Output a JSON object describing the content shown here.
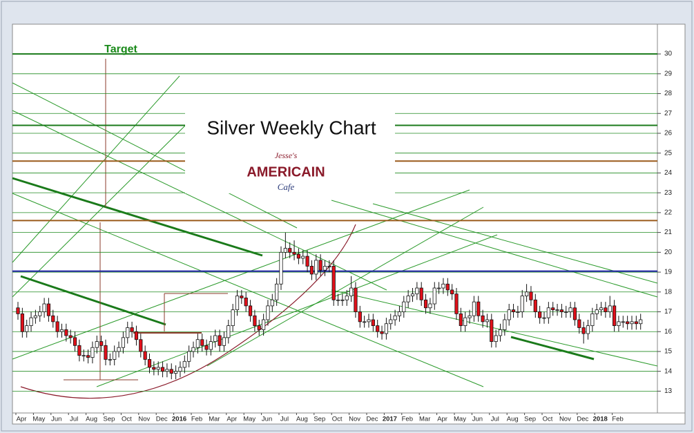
{
  "chart_data": {
    "type": "candlestick",
    "title": "Silver Weekly Chart",
    "annotation": "Target",
    "logo": {
      "top": "Jesse's",
      "middle": "AMERICAIN",
      "bottom": "Cafe"
    },
    "up_color": "#ffffff",
    "down_color": "#e0101a",
    "grid_color": "#1f8a1f",
    "ylim": [
      11.9,
      31.5
    ],
    "yticks": [
      13,
      14,
      15,
      16,
      17,
      18,
      19,
      20,
      21,
      22,
      23,
      24,
      25,
      26,
      27,
      28,
      29,
      30
    ],
    "grid": true,
    "levels": [
      {
        "value": 30,
        "color": "#1a7a1a"
      },
      {
        "value": 26.4,
        "color": "#1a7a1a"
      },
      {
        "value": 24.6,
        "color": "#9a5a1a"
      },
      {
        "value": 21.6,
        "color": "#9a5a1a"
      },
      {
        "value": 19.05,
        "color": "#2222aa"
      }
    ],
    "categories": [
      "Apr",
      null,
      null,
      null,
      "May",
      null,
      null,
      null,
      "Jun",
      null,
      null,
      null,
      "Jul",
      null,
      null,
      null,
      "Aug",
      null,
      null,
      null,
      "Sep",
      null,
      null,
      null,
      "Oct",
      null,
      null,
      null,
      "Nov",
      null,
      null,
      null,
      "Dec",
      null,
      null,
      null,
      "2016",
      null,
      null,
      null,
      "Feb",
      null,
      null,
      null,
      "Mar",
      null,
      null,
      null,
      "Apr",
      null,
      null,
      null,
      "May",
      null,
      null,
      null,
      "Jun",
      null,
      null,
      null,
      "Jul",
      null,
      null,
      null,
      "Aug",
      null,
      null,
      null,
      "Sep",
      null,
      null,
      null,
      "Oct",
      null,
      null,
      null,
      "Nov",
      null,
      null,
      null,
      "Dec",
      null,
      null,
      null,
      "2017",
      null,
      null,
      null,
      "Feb",
      null,
      null,
      null,
      "Mar",
      null,
      null,
      null,
      "Apr",
      null,
      null,
      null,
      "May",
      null,
      null,
      null,
      "Jun",
      null,
      null,
      null,
      "Jul",
      null,
      null,
      null,
      "Aug",
      null,
      null,
      null,
      "Sep",
      null,
      null,
      null,
      "Oct",
      null,
      null,
      null,
      "Nov",
      null,
      null,
      null,
      "Dec",
      null,
      null,
      null,
      "2018",
      null,
      null,
      null,
      "Feb",
      null,
      null,
      null,
      null,
      null,
      null
    ],
    "open": [
      17.2,
      16.9,
      16.0,
      16.3,
      16.7,
      16.8,
      17.0,
      17.4,
      16.8,
      16.5,
      16.0,
      16.1,
      15.8,
      15.7,
      15.3,
      14.8,
      14.8,
      14.7,
      15.2,
      15.5,
      15.3,
      14.6,
      14.6,
      15.0,
      15.2,
      15.7,
      16.2,
      16.0,
      15.6,
      15.0,
      14.6,
      14.2,
      14.1,
      14.2,
      14.0,
      14.1,
      13.9,
      14.0,
      14.2,
      14.5,
      15.0,
      15.2,
      15.6,
      15.3,
      15.1,
      15.5,
      15.8,
      15.3,
      15.7,
      16.3,
      17.1,
      17.8,
      17.7,
      17.3,
      16.8,
      16.3,
      16.1,
      16.6,
      17.3,
      17.6,
      18.4,
      20.0,
      20.2,
      20.0,
      19.9,
      19.7,
      19.8,
      19.3,
      18.9,
      19.6,
      19.1,
      19.3,
      19.3,
      17.6,
      17.6,
      17.6,
      17.8,
      18.2,
      17.0,
      16.5,
      16.5,
      16.6,
      16.3,
      16.0,
      15.9,
      16.4,
      16.6,
      16.8,
      17.0,
      17.5,
      17.8,
      17.9,
      18.2,
      17.6,
      17.2,
      17.4,
      18.2,
      18.2,
      18.4,
      18.1,
      17.9,
      16.9,
      16.3,
      16.7,
      16.8,
      17.5,
      16.8,
      16.5,
      16.6,
      15.5,
      15.8,
      16.1,
      16.6,
      17.1,
      17.0,
      17.0,
      17.8,
      18.0,
      17.6,
      17.0,
      16.7,
      16.7,
      17.2,
      17.1,
      17.1,
      17.0,
      17.0,
      17.2,
      16.6,
      16.2,
      15.9,
      16.3,
      16.9,
      17.1,
      17.2,
      17.0,
      17.3,
      16.3,
      16.5,
      16.5,
      16.4,
      16.5,
      16.4
    ],
    "high": [
      17.5,
      17.2,
      16.6,
      17.0,
      17.1,
      17.3,
      17.7,
      17.7,
      17.1,
      16.8,
      16.4,
      16.4,
      16.1,
      16.0,
      15.6,
      15.1,
      15.1,
      15.5,
      15.8,
      15.8,
      15.6,
      14.9,
      15.3,
      15.5,
      16.0,
      16.5,
      16.5,
      16.3,
      15.9,
      15.3,
      14.9,
      14.5,
      14.5,
      14.5,
      14.4,
      14.4,
      14.3,
      14.5,
      14.8,
      15.3,
      15.5,
      15.9,
      15.9,
      15.6,
      15.8,
      16.1,
      16.1,
      16.0,
      16.6,
      17.4,
      18.1,
      18.1,
      18.0,
      17.6,
      17.1,
      16.6,
      16.9,
      17.6,
      17.9,
      18.7,
      20.3,
      21.0,
      20.5,
      20.6,
      20.2,
      20.1,
      20.1,
      19.6,
      19.9,
      19.9,
      19.6,
      19.6,
      19.6,
      17.9,
      17.9,
      18.1,
      18.8,
      18.5,
      17.3,
      16.8,
      16.9,
      16.9,
      16.6,
      16.3,
      16.7,
      16.9,
      17.1,
      17.3,
      17.8,
      18.1,
      18.2,
      18.5,
      18.5,
      17.9,
      17.7,
      18.5,
      18.5,
      18.7,
      18.7,
      18.4,
      18.2,
      17.2,
      17.0,
      17.1,
      17.8,
      17.8,
      17.1,
      16.9,
      16.9,
      16.1,
      16.4,
      16.9,
      17.4,
      17.4,
      17.3,
      18.1,
      18.4,
      18.3,
      17.9,
      17.3,
      17.0,
      17.5,
      17.5,
      17.4,
      17.4,
      17.3,
      17.5,
      17.5,
      16.9,
      16.5,
      16.6,
      17.2,
      17.4,
      17.5,
      17.5,
      17.8,
      17.6,
      16.8,
      16.8,
      16.8,
      16.8,
      16.8,
      16.9
    ],
    "low": [
      16.6,
      15.7,
      15.7,
      16.0,
      16.4,
      16.5,
      16.7,
      16.5,
      16.2,
      15.7,
      15.7,
      15.5,
      15.4,
      15.0,
      14.5,
      14.5,
      14.4,
      14.4,
      14.9,
      15.0,
      14.3,
      14.3,
      14.3,
      14.7,
      14.9,
      15.4,
      15.7,
      15.3,
      14.7,
      14.3,
      13.9,
      13.8,
      13.8,
      13.7,
      13.7,
      13.6,
      13.6,
      13.7,
      13.9,
      14.2,
      14.7,
      14.9,
      15.0,
      14.8,
      14.8,
      15.2,
      15.0,
      15.0,
      15.4,
      16.0,
      16.8,
      17.4,
      17.0,
      16.5,
      16.0,
      15.8,
      15.8,
      16.3,
      17.0,
      17.3,
      18.1,
      19.7,
      19.7,
      19.6,
      19.4,
      19.4,
      19.0,
      18.6,
      18.6,
      18.8,
      18.8,
      19.0,
      17.3,
      17.3,
      17.3,
      17.3,
      17.5,
      16.7,
      16.2,
      16.2,
      16.2,
      16.0,
      15.7,
      15.6,
      15.6,
      16.1,
      16.3,
      16.5,
      16.7,
      17.2,
      17.5,
      17.6,
      17.3,
      16.9,
      16.9,
      17.1,
      17.9,
      17.9,
      17.8,
      17.6,
      16.6,
      16.0,
      16.0,
      16.4,
      16.5,
      16.5,
      16.2,
      16.2,
      15.2,
      15.2,
      15.5,
      15.8,
      16.3,
      16.7,
      16.7,
      16.7,
      17.5,
      17.3,
      16.7,
      16.4,
      16.4,
      16.4,
      16.8,
      16.8,
      16.7,
      16.7,
      16.7,
      16.3,
      15.9,
      15.4,
      15.6,
      16.0,
      16.6,
      16.8,
      16.7,
      16.7,
      16.0,
      16.0,
      16.2,
      16.1,
      16.1,
      16.1,
      16.1
    ],
    "close": [
      16.9,
      16.0,
      16.3,
      16.7,
      16.8,
      17.0,
      17.4,
      16.8,
      16.5,
      16.0,
      16.1,
      15.8,
      15.7,
      15.3,
      14.8,
      14.8,
      14.7,
      15.2,
      15.5,
      15.3,
      14.6,
      14.6,
      15.0,
      15.2,
      15.7,
      16.2,
      16.0,
      15.6,
      15.0,
      14.6,
      14.2,
      14.1,
      14.2,
      14.0,
      14.1,
      13.9,
      14.0,
      14.2,
      14.5,
      15.0,
      15.2,
      15.6,
      15.3,
      15.1,
      15.5,
      15.8,
      15.3,
      15.7,
      16.3,
      17.1,
      17.8,
      17.7,
      17.3,
      16.8,
      16.3,
      16.1,
      16.6,
      17.3,
      17.6,
      18.4,
      20.0,
      20.2,
      20.0,
      19.9,
      19.7,
      19.8,
      19.3,
      18.9,
      19.6,
      19.1,
      19.3,
      19.3,
      17.6,
      17.6,
      17.6,
      17.8,
      18.2,
      17.0,
      16.5,
      16.5,
      16.6,
      16.3,
      16.0,
      15.9,
      16.4,
      16.6,
      16.8,
      17.0,
      17.5,
      17.8,
      17.9,
      18.2,
      17.6,
      17.2,
      17.4,
      18.2,
      18.2,
      18.4,
      18.1,
      17.9,
      16.9,
      16.3,
      16.7,
      16.8,
      17.5,
      16.8,
      16.5,
      16.6,
      15.5,
      15.8,
      16.1,
      16.6,
      17.1,
      17.0,
      17.0,
      17.8,
      18.0,
      17.6,
      17.0,
      16.7,
      16.7,
      17.2,
      17.1,
      17.1,
      17.0,
      17.0,
      17.2,
      16.6,
      16.2,
      15.9,
      16.3,
      16.9,
      17.1,
      17.2,
      17.0,
      17.3,
      16.3,
      16.5,
      16.5,
      16.4,
      16.5,
      16.4,
      16.6
    ]
  }
}
